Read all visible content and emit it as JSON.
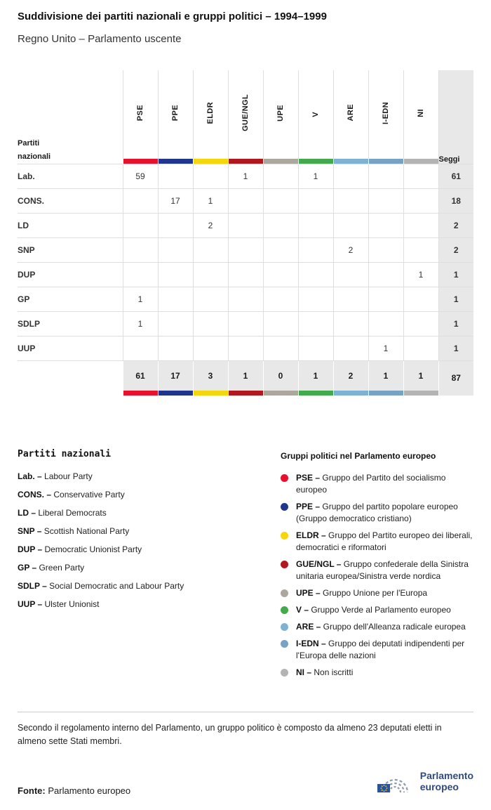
{
  "chart_data": {
    "type": "table",
    "title": "Suddivisione dei partiti nazionali e gruppi politici – 1994–1999",
    "subtitle": "Regno Unito – Parlamento uscente",
    "row_header": "Partiti\nnazionali",
    "seats_header": "Seggi",
    "groups": [
      {
        "code": "PSE",
        "color": "#e8112d"
      },
      {
        "code": "PPE",
        "color": "#20368c"
      },
      {
        "code": "ELDR",
        "color": "#f3d70c"
      },
      {
        "code": "GUE/NGL",
        "color": "#b2171d"
      },
      {
        "code": "UPE",
        "color": "#aca79e"
      },
      {
        "code": "V",
        "color": "#43a94d"
      },
      {
        "code": "ARE",
        "color": "#7eb2d3"
      },
      {
        "code": "I-EDN",
        "color": "#77a2c3"
      },
      {
        "code": "NI",
        "color": "#b4b4b4"
      }
    ],
    "rows": [
      {
        "party": "Lab.",
        "values": [
          59,
          "",
          "",
          1,
          "",
          1,
          "",
          "",
          ""
        ],
        "seats": 61
      },
      {
        "party": "CONS.",
        "values": [
          "",
          17,
          1,
          "",
          "",
          "",
          "",
          "",
          ""
        ],
        "seats": 18
      },
      {
        "party": "LD",
        "values": [
          "",
          "",
          2,
          "",
          "",
          "",
          "",
          "",
          ""
        ],
        "seats": 2
      },
      {
        "party": "SNP",
        "values": [
          "",
          "",
          "",
          "",
          "",
          "",
          2,
          "",
          ""
        ],
        "seats": 2
      },
      {
        "party": "DUP",
        "values": [
          "",
          "",
          "",
          "",
          "",
          "",
          "",
          "",
          1
        ],
        "seats": 1
      },
      {
        "party": "GP",
        "values": [
          1,
          "",
          "",
          "",
          "",
          "",
          "",
          "",
          ""
        ],
        "seats": 1
      },
      {
        "party": "SDLP",
        "values": [
          1,
          "",
          "",
          "",
          "",
          "",
          "",
          "",
          ""
        ],
        "seats": 1
      },
      {
        "party": "UUP",
        "values": [
          "",
          "",
          "",
          "",
          "",
          "",
          "",
          1,
          ""
        ],
        "seats": 1
      }
    ],
    "totals": {
      "values": [
        61,
        17,
        3,
        1,
        0,
        1,
        2,
        1,
        1
      ],
      "seats": 87
    }
  },
  "legend_parties": {
    "title": "Partiti nazionali",
    "items": [
      {
        "abbr": "Lab.",
        "name": "Labour Party"
      },
      {
        "abbr": "CONS.",
        "name": "Conservative Party"
      },
      {
        "abbr": "LD",
        "name": "Liberal Democrats"
      },
      {
        "abbr": "SNP",
        "name": "Scottish National Party"
      },
      {
        "abbr": "DUP",
        "name": "Democratic Unionist Party"
      },
      {
        "abbr": "GP",
        "name": "Green Party"
      },
      {
        "abbr": "SDLP",
        "name": "Social Democratic and Labour Party"
      },
      {
        "abbr": "UUP",
        "name": "Ulster Unionist"
      }
    ]
  },
  "legend_groups": {
    "title": "Gruppi politici nel Parlamento europeo",
    "items": [
      {
        "abbr": "PSE",
        "color": "#e8112d",
        "name": "Gruppo del Partito del socialismo europeo"
      },
      {
        "abbr": "PPE",
        "color": "#20368c",
        "name": "Gruppo del partito popolare europeo (Gruppo democratico cristiano)"
      },
      {
        "abbr": "ELDR",
        "color": "#f3d70c",
        "name": "Gruppo del Partito europeo dei liberali, democratici e riformatori"
      },
      {
        "abbr": "GUE/NGL",
        "color": "#b2171d",
        "name": "Gruppo confederale della Sinistra unitaria europea/Sinistra verde nordica"
      },
      {
        "abbr": "UPE",
        "color": "#aca79e",
        "name": "Gruppo Unione per l'Europa"
      },
      {
        "abbr": "V",
        "color": "#43a94d",
        "name": "Gruppo Verde al Parlamento europeo"
      },
      {
        "abbr": "ARE",
        "color": "#7eb2d3",
        "name": "Gruppo dell'Alleanza radicale europea"
      },
      {
        "abbr": "I-EDN",
        "color": "#77a2c3",
        "name": "Gruppo dei deputati indipendenti per l'Europa delle nazioni"
      },
      {
        "abbr": "NI",
        "color": "#b4b4b4",
        "name": "Non iscritti"
      }
    ]
  },
  "footnote": "Secondo il regolamento interno del Parlamento, un gruppo politico è composto da almeno 23 deputati eletti in almeno sette Stati membri.",
  "source": {
    "label": "Fonte:",
    "text": "Parlamento europeo"
  },
  "logo": {
    "line1": "Parlamento",
    "line2": "europeo"
  }
}
